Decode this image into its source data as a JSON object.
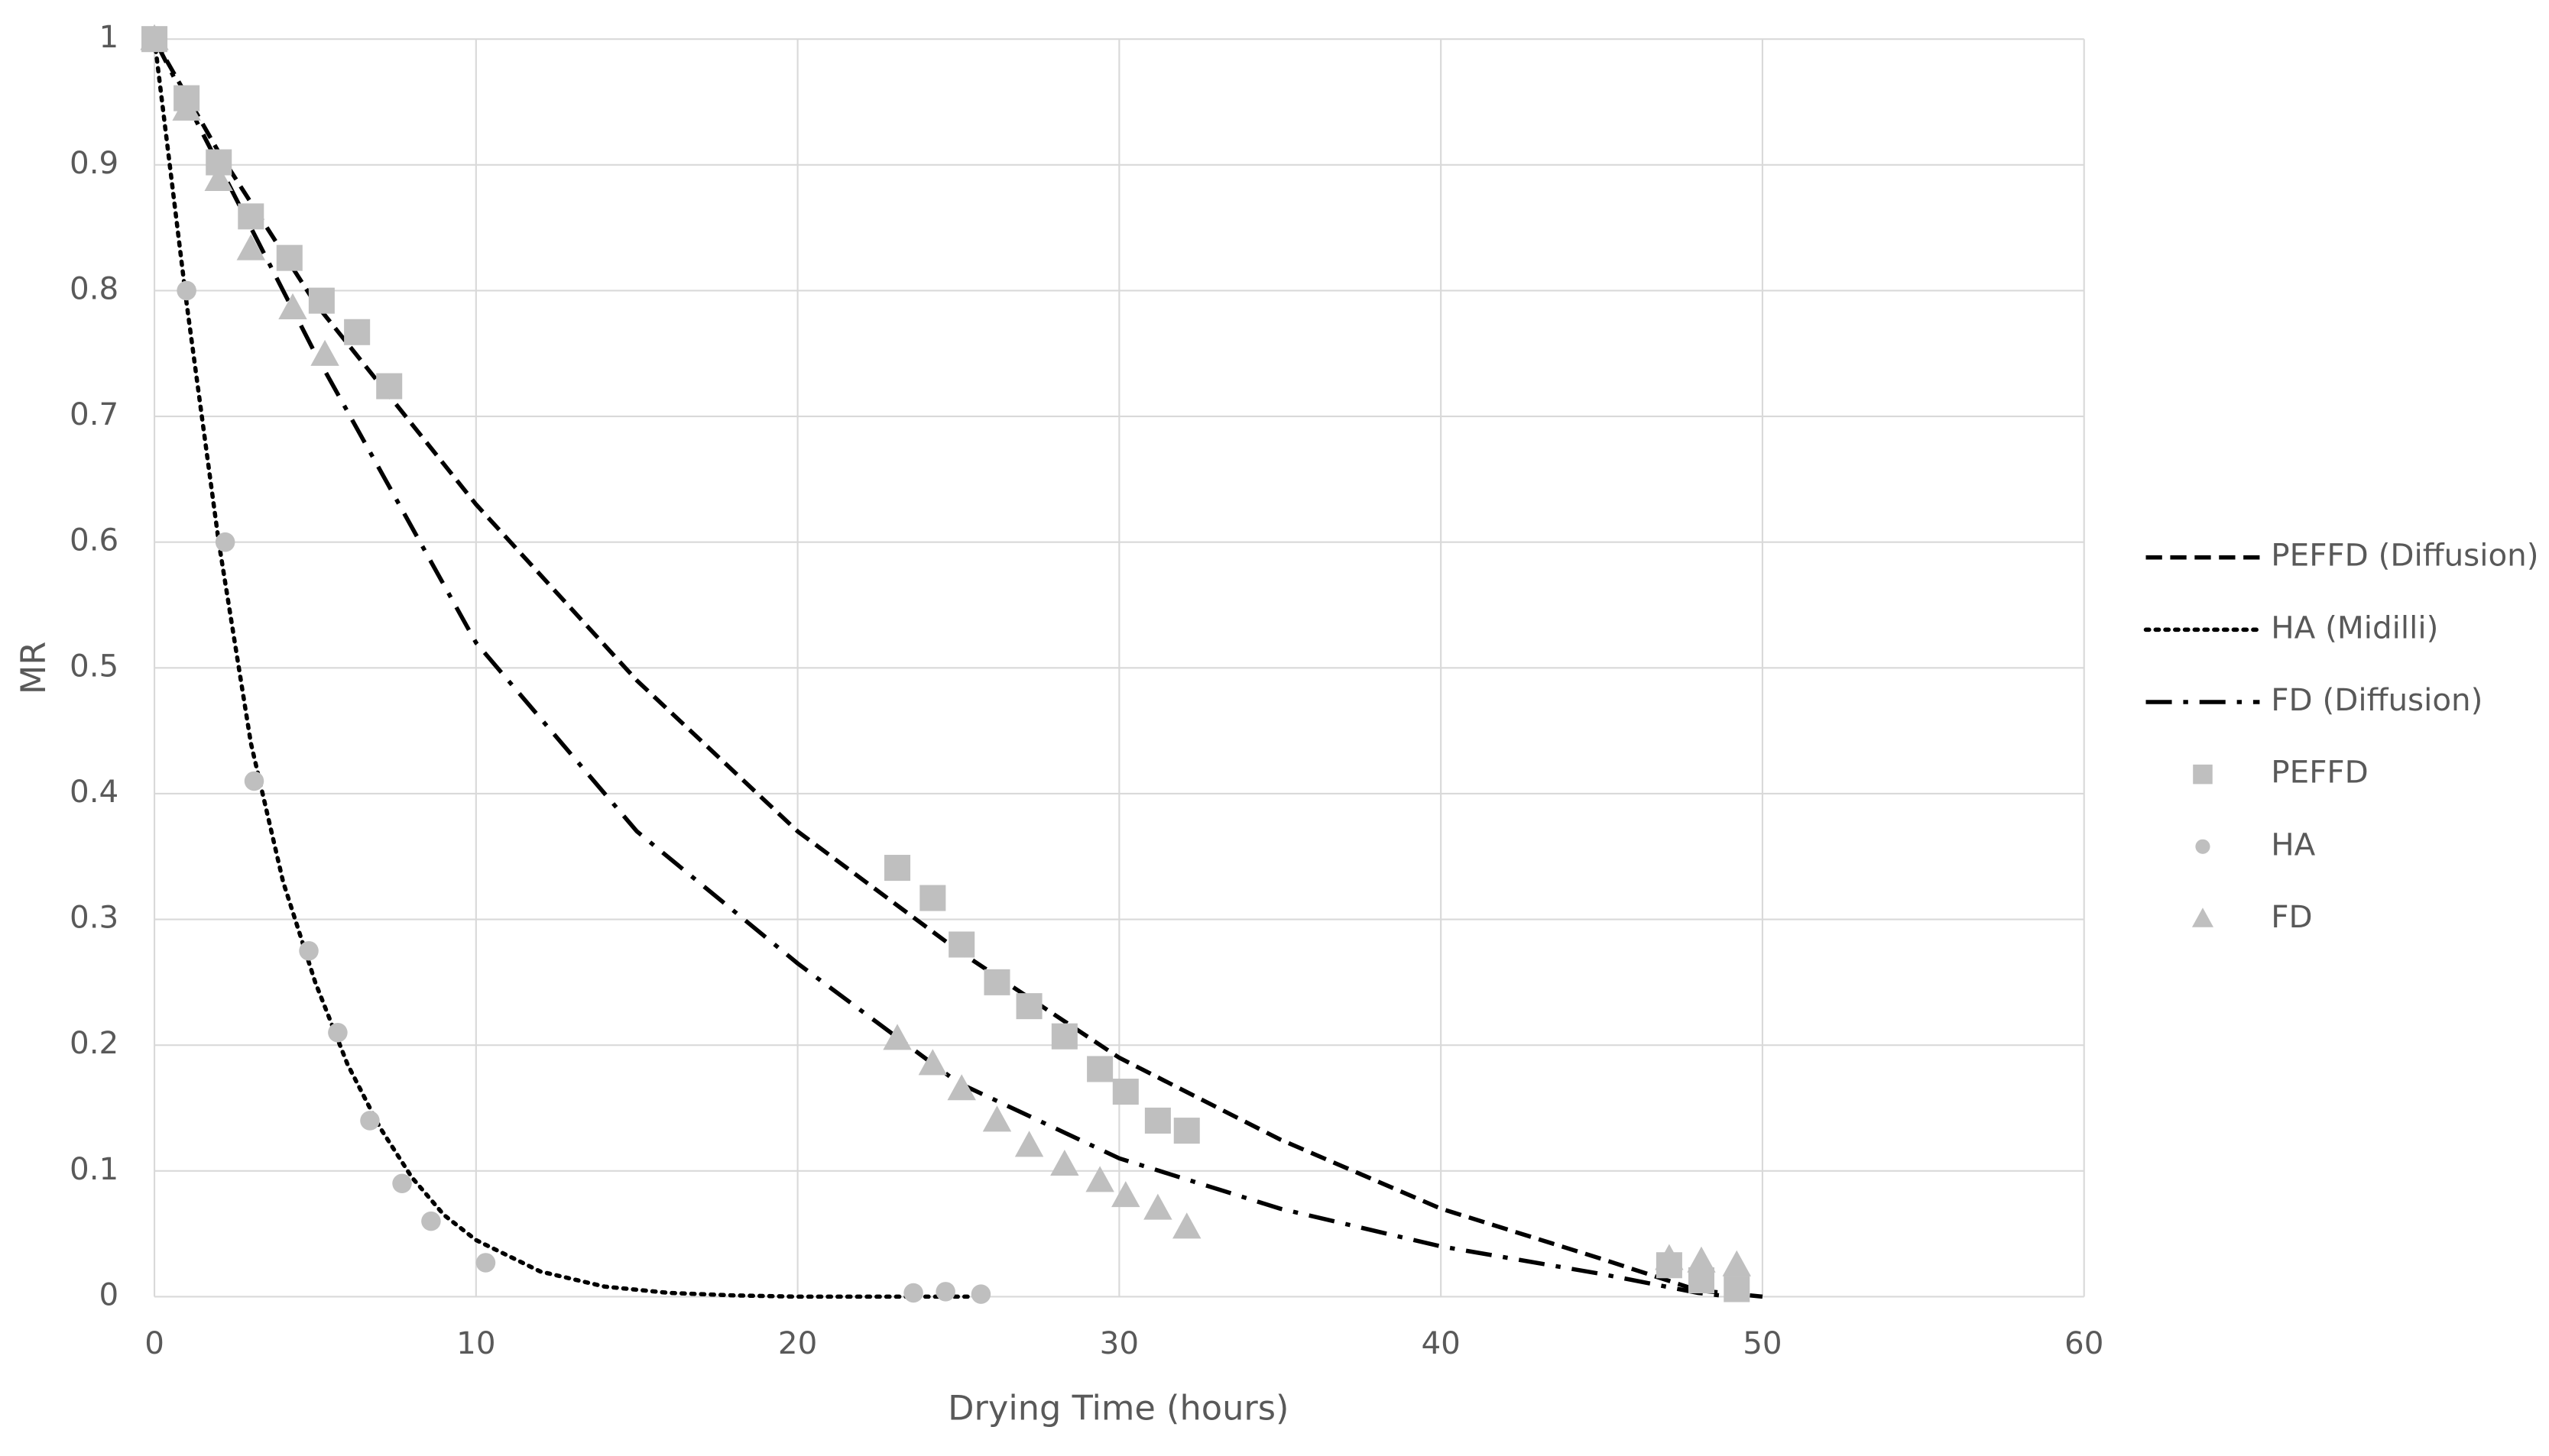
{
  "chart_data": {
    "type": "scatter",
    "x_label": "Drying Time (hours)",
    "y_label": "MR",
    "xlim": [
      0,
      60
    ],
    "xticks": [
      0,
      10,
      20,
      30,
      40,
      50,
      60
    ],
    "ylim": [
      0,
      1
    ],
    "yticks": [
      0,
      0.1,
      0.2,
      0.3,
      0.4,
      0.5,
      0.6,
      0.7,
      0.8,
      0.9,
      1
    ],
    "grid": true,
    "legend": "right",
    "series": [
      {
        "name": "PEFFD (Diffusion)",
        "type": "line",
        "line_style": "dashed",
        "color": "#000000",
        "x": [
          0,
          2,
          5,
          10,
          15,
          20,
          25,
          30,
          35,
          40,
          45,
          48,
          50
        ],
        "values": [
          1,
          0.91,
          0.79,
          0.63,
          0.49,
          0.37,
          0.275,
          0.19,
          0.125,
          0.07,
          0.03,
          0.005,
          0
        ]
      },
      {
        "name": "HA (Midilli)",
        "type": "line",
        "line_style": "dotted",
        "color": "#000000",
        "x": [
          0,
          1,
          2,
          3,
          4,
          5,
          6,
          7,
          8,
          9,
          10,
          12,
          14,
          16,
          18,
          20,
          26
        ],
        "values": [
          1,
          0.79,
          0.6,
          0.44,
          0.33,
          0.25,
          0.185,
          0.135,
          0.095,
          0.065,
          0.045,
          0.02,
          0.008,
          0.003,
          0.001,
          0,
          0
        ]
      },
      {
        "name": "FD (Diffusion)",
        "type": "line",
        "line_style": "dashdot",
        "color": "#000000",
        "x": [
          0,
          2,
          5,
          10,
          15,
          20,
          25,
          30,
          35,
          40,
          45,
          48,
          49
        ],
        "values": [
          1,
          0.9,
          0.75,
          0.52,
          0.37,
          0.265,
          0.17,
          0.11,
          0.07,
          0.04,
          0.018,
          0.003,
          0
        ]
      },
      {
        "name": "PEFFD",
        "type": "scatter",
        "marker": "square",
        "color": "#bfbfbf",
        "x": [
          0,
          1,
          2,
          3,
          4.2,
          5.2,
          6.3,
          7.3,
          23.1,
          24.2,
          25.1,
          26.2,
          27.2,
          28.3,
          29.4,
          30.2,
          31.2,
          32.1,
          47.1,
          48.1,
          49.2
        ],
        "values": [
          1,
          0.953,
          0.902,
          0.859,
          0.826,
          0.792,
          0.767,
          0.724,
          0.341,
          0.317,
          0.28,
          0.25,
          0.231,
          0.207,
          0.181,
          0.163,
          0.14,
          0.132,
          0.025,
          0.013,
          0.006
        ]
      },
      {
        "name": "HA",
        "type": "scatter",
        "marker": "circle",
        "color": "#bfbfbf",
        "x": [
          0,
          1,
          2.2,
          3.1,
          4.8,
          5.7,
          6.7,
          7.7,
          8.6,
          10.3,
          23.6,
          24.6,
          25.7
        ],
        "values": [
          1,
          0.8,
          0.6,
          0.41,
          0.275,
          0.21,
          0.14,
          0.09,
          0.06,
          0.027,
          0.003,
          0.004,
          0.002
        ]
      },
      {
        "name": "FD",
        "type": "scatter",
        "marker": "triangle",
        "color": "#bfbfbf",
        "x": [
          0,
          1,
          2,
          3,
          4.3,
          5.3,
          23.1,
          24.2,
          25.1,
          26.2,
          27.2,
          28.3,
          29.4,
          30.2,
          31.2,
          32.1,
          47.1,
          48.1,
          49.2
        ],
        "values": [
          1,
          0.944,
          0.888,
          0.833,
          0.786,
          0.749,
          0.205,
          0.185,
          0.165,
          0.14,
          0.12,
          0.105,
          0.092,
          0.08,
          0.07,
          0.055,
          0.03,
          0.028,
          0.025
        ]
      }
    ]
  }
}
